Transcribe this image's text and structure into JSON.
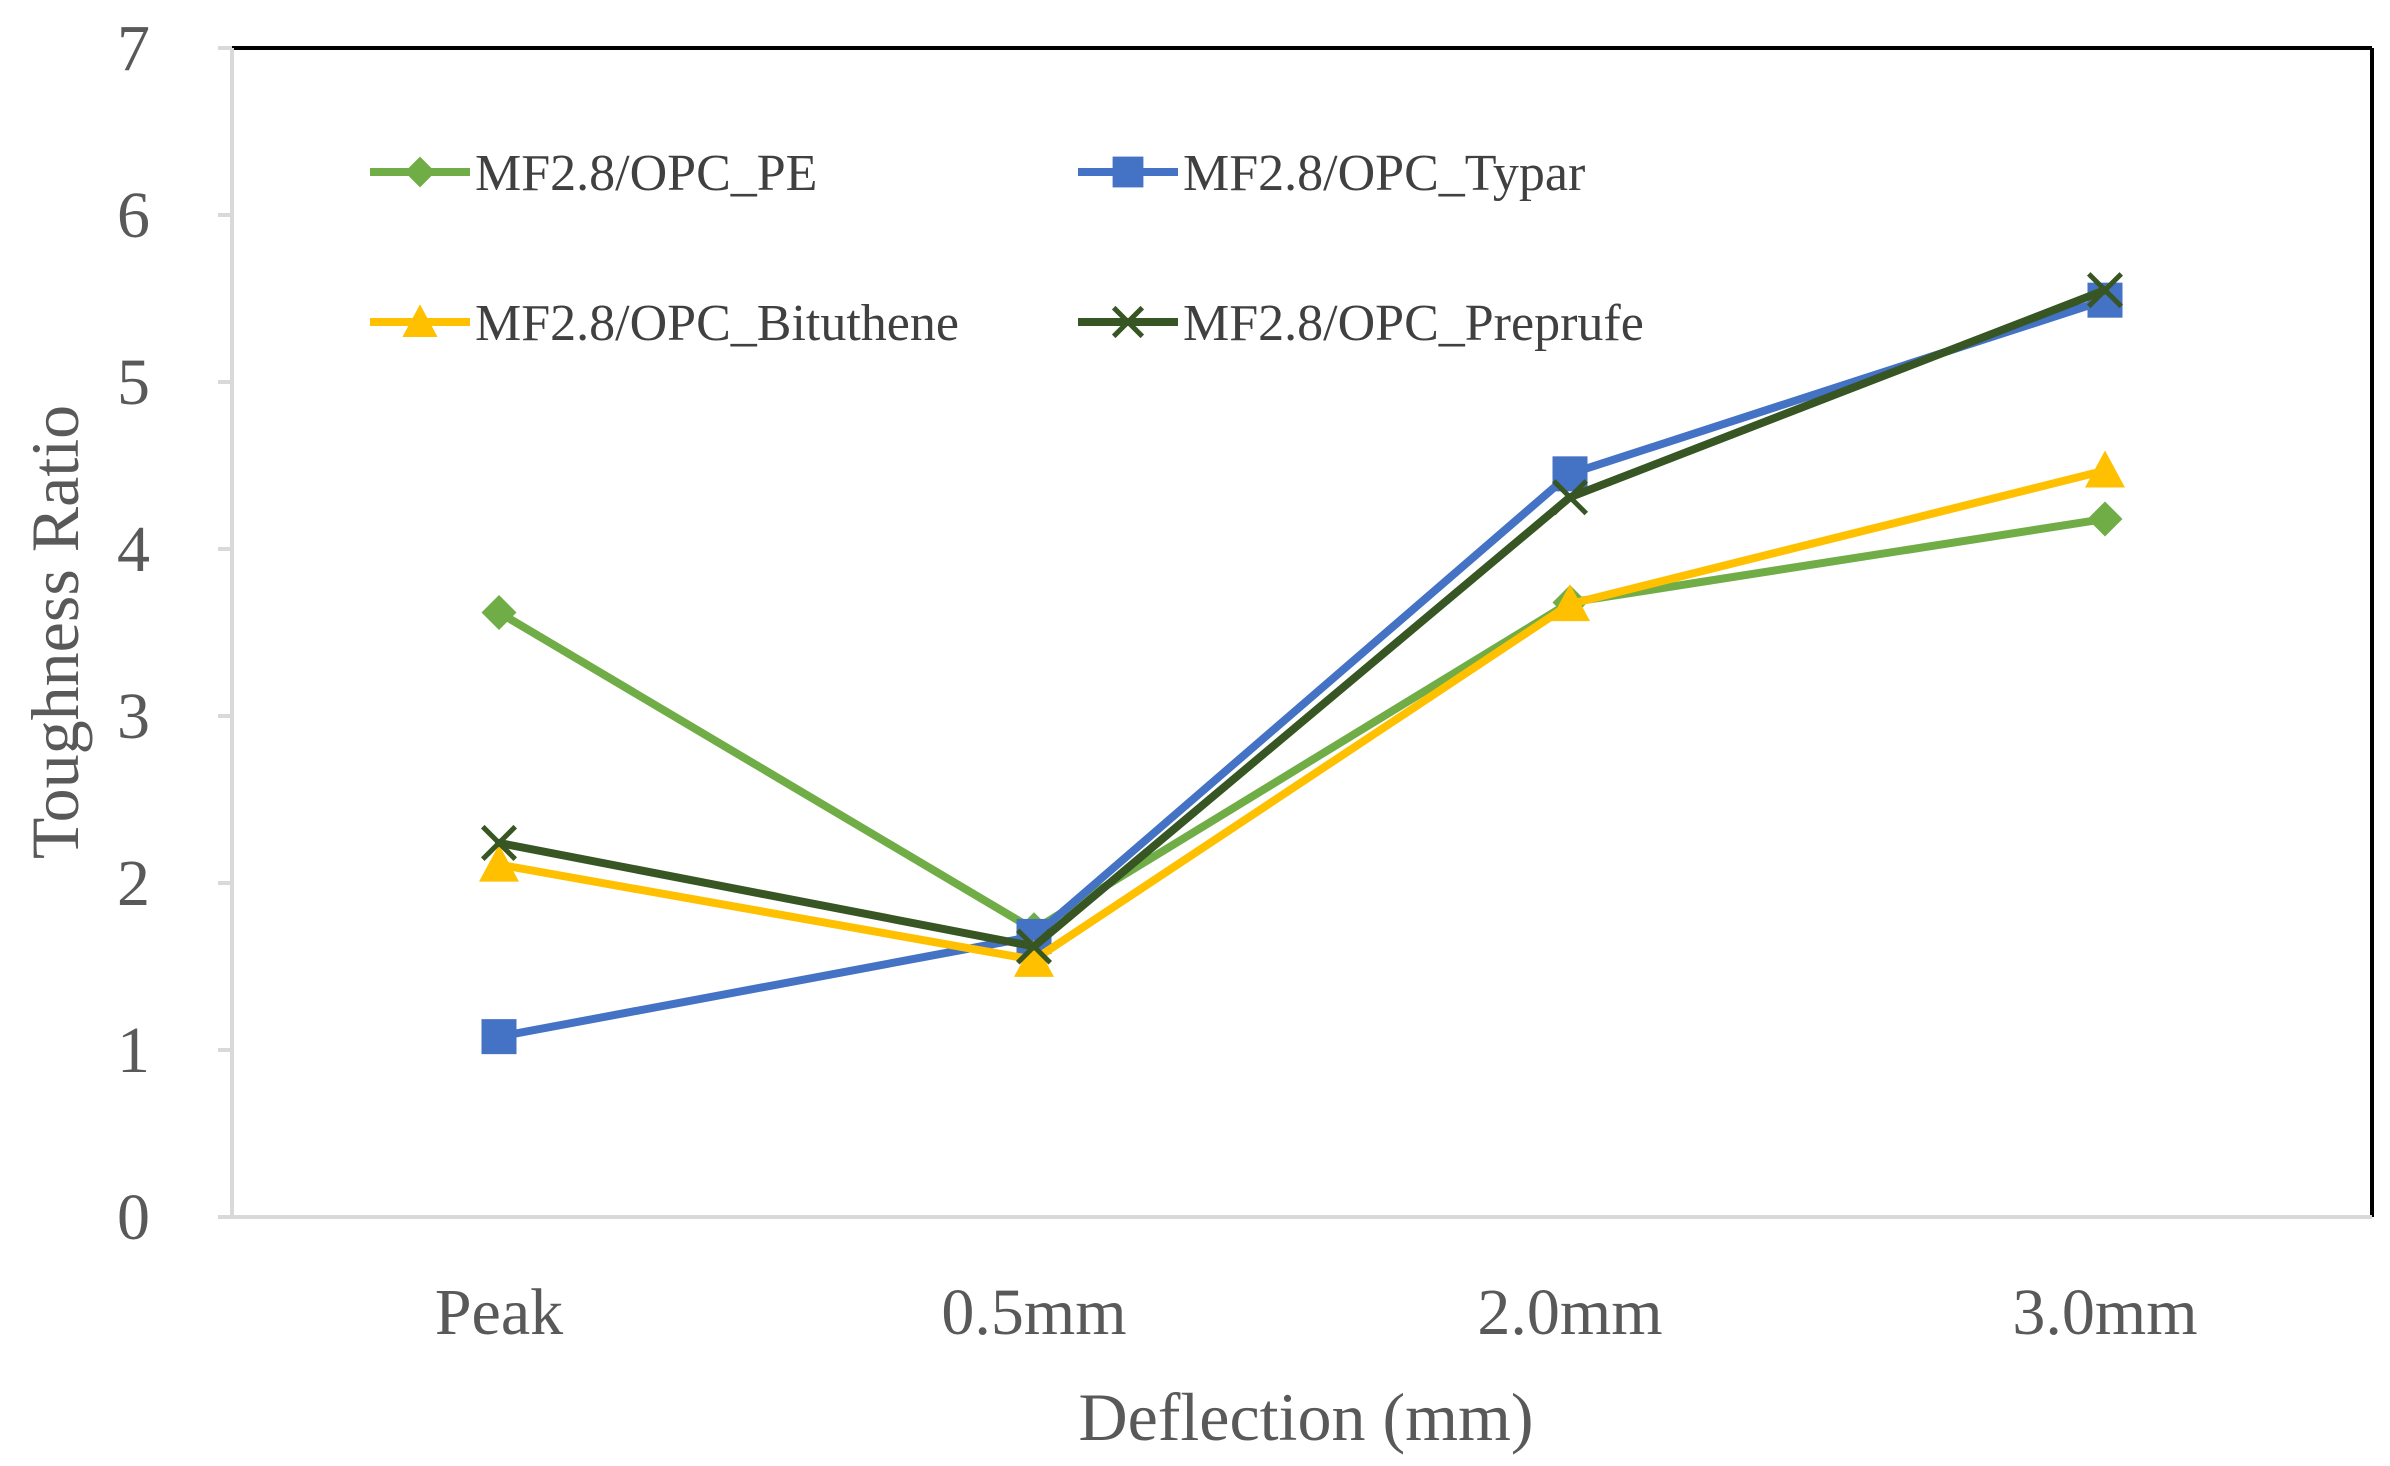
{
  "chart_data": {
    "type": "line",
    "title": "",
    "xlabel": "Deflection (mm)",
    "ylabel": "Toughness Ratio",
    "categories": [
      "Peak",
      "0.5mm",
      "2.0mm",
      "3.0mm"
    ],
    "yticks": [
      "0",
      "1",
      "2",
      "3",
      "4",
      "5",
      "6",
      "7"
    ],
    "ylim": [
      0,
      7
    ],
    "grid": false,
    "legend_position": "top-left, inside plot area, two columns",
    "series": [
      {
        "name": "MF2.8/OPC_PE",
        "color": "#70AD47",
        "marker": "diamond",
        "values": [
          3.62,
          1.72,
          3.68,
          4.18
        ]
      },
      {
        "name": "MF2.8/OPC_Typar",
        "color": "#4472C4",
        "marker": "square",
        "values": [
          1.08,
          1.68,
          4.45,
          5.49
        ]
      },
      {
        "name": "MF2.8/OPC_Bituthene",
        "color": "#FFC000",
        "marker": "triangle",
        "values": [
          2.11,
          1.54,
          3.67,
          4.47
        ]
      },
      {
        "name": "MF2.8/OPC_Preprufe",
        "color": "#375623",
        "marker": "x",
        "values": [
          2.24,
          1.62,
          4.31,
          5.55
        ]
      }
    ]
  }
}
